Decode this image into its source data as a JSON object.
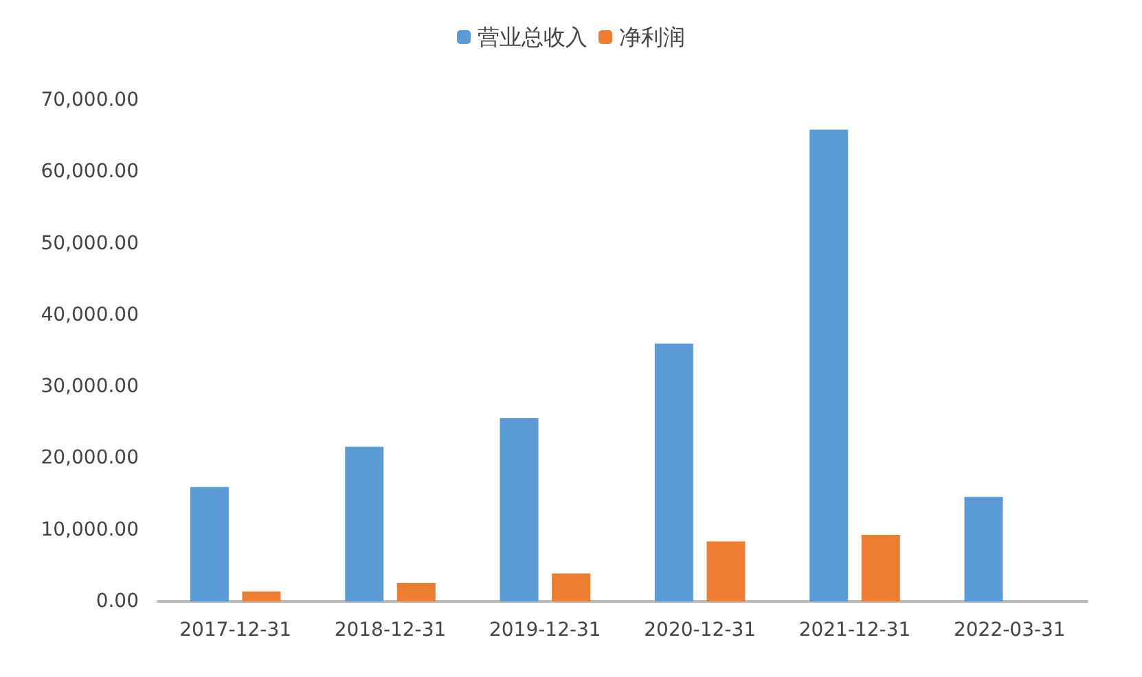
{
  "chart_data": {
    "type": "bar",
    "categories": [
      "2017-12-31",
      "2018-12-31",
      "2019-12-31",
      "2020-12-31",
      "2021-12-31",
      "2022-03-31"
    ],
    "series": [
      {
        "name": "营业总收入",
        "color": "#5b9bd5",
        "values": [
          16000,
          21600,
          25600,
          36000,
          65900,
          14600
        ]
      },
      {
        "name": "净利润",
        "color": "#ed7d31",
        "values": [
          1400,
          2600,
          3900,
          8400,
          9300,
          null
        ]
      }
    ],
    "ylim": [
      0,
      70000
    ],
    "yticks": [
      {
        "value": 0,
        "label": "0.00"
      },
      {
        "value": 10000,
        "label": "10,000.00"
      },
      {
        "value": 20000,
        "label": "20,000.00"
      },
      {
        "value": 30000,
        "label": "30,000.00"
      },
      {
        "value": 40000,
        "label": "40,000.00"
      },
      {
        "value": 50000,
        "label": "50,000.00"
      },
      {
        "value": 60000,
        "label": "60,000.00"
      },
      {
        "value": 70000,
        "label": "70,000.00"
      }
    ],
    "grid": false,
    "legend": "top"
  }
}
